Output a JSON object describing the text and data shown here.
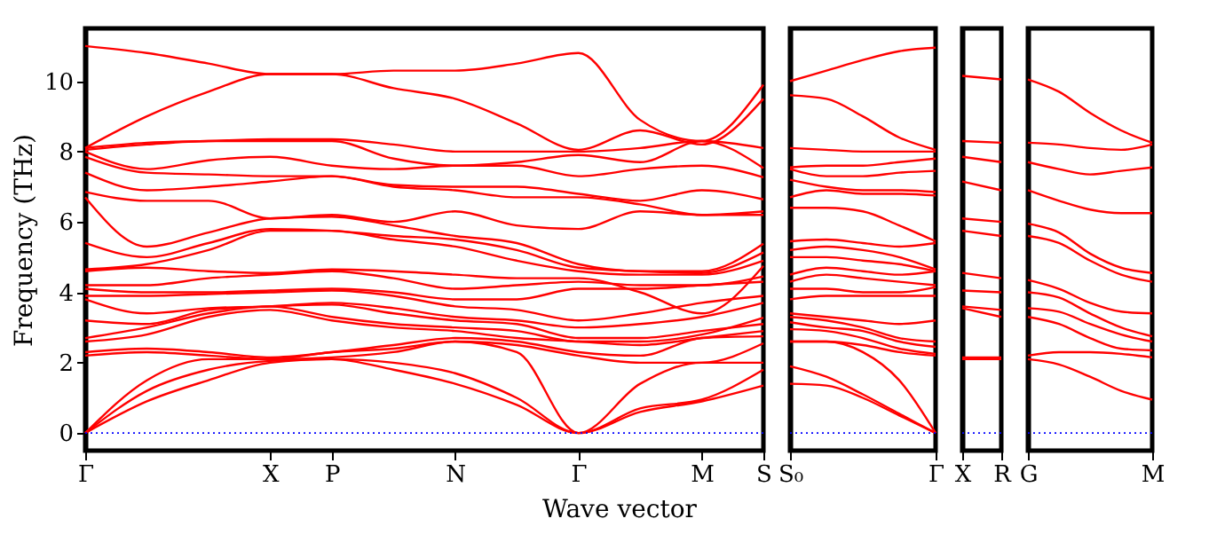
{
  "chart_data": [
    {
      "type": "line",
      "xlabel": "Wave vector",
      "ylabel": "Frequency (THz)",
      "categories": [
        "Γ",
        null,
        null,
        "X",
        "P",
        null,
        "N",
        null,
        "Γ",
        null,
        "M",
        "S"
      ],
      "ylim": [
        -0.5,
        11.5
      ],
      "yticks": [
        0,
        2,
        4,
        6,
        8,
        10
      ],
      "ref_lines": [
        {
          "axis": "y",
          "value": 0,
          "color": "#0000ff",
          "line_style": "dotted"
        }
      ],
      "series": [
        {
          "color": "#ff0000",
          "values": [
            0,
            0.9,
            1.5,
            2.0,
            2.1,
            1.8,
            1.4,
            0.8,
            0,
            0.6,
            0.9,
            1.35
          ]
        },
        {
          "color": "#ff0000",
          "values": [
            0,
            1.2,
            1.8,
            2.05,
            2.1,
            2.0,
            1.7,
            1.0,
            0,
            0.7,
            0.95,
            1.8
          ]
        },
        {
          "color": "#ff0000",
          "values": [
            0,
            1.5,
            2.1,
            2.1,
            2.15,
            2.3,
            2.6,
            2.3,
            0,
            1.4,
            2.0,
            2.0
          ]
        },
        {
          "color": "#ff0000",
          "values": [
            2.2,
            2.3,
            2.2,
            2.1,
            2.3,
            2.4,
            2.6,
            2.5,
            2.2,
            2.0,
            2.0,
            2.55
          ]
        },
        {
          "color": "#ff0000",
          "values": [
            2.3,
            2.4,
            2.3,
            2.15,
            2.3,
            2.5,
            2.7,
            2.6,
            2.3,
            2.2,
            2.7,
            2.75
          ]
        },
        {
          "color": "#ff0000",
          "values": [
            2.6,
            2.8,
            3.3,
            3.5,
            3.2,
            3.0,
            2.9,
            2.7,
            2.6,
            2.5,
            2.7,
            2.9
          ]
        },
        {
          "color": "#ff0000",
          "values": [
            2.7,
            3.0,
            3.4,
            3.6,
            3.3,
            3.1,
            3.0,
            2.9,
            2.6,
            2.6,
            2.8,
            3.28
          ]
        },
        {
          "color": "#ff0000",
          "values": [
            3.2,
            3.1,
            3.5,
            3.6,
            3.65,
            3.4,
            3.2,
            3.1,
            2.7,
            2.7,
            2.9,
            3.1
          ]
        },
        {
          "color": "#ff0000",
          "values": [
            3.8,
            3.4,
            3.55,
            3.6,
            3.7,
            3.55,
            3.3,
            3.2,
            3.0,
            3.1,
            3.3,
            3.7
          ]
        },
        {
          "color": "#ff0000",
          "values": [
            3.9,
            3.9,
            3.95,
            4.0,
            4.05,
            3.9,
            3.6,
            3.5,
            3.2,
            3.4,
            3.7,
            3.9
          ]
        },
        {
          "color": "#ff0000",
          "values": [
            4.1,
            4.0,
            4.0,
            4.05,
            4.1,
            4.0,
            3.8,
            3.8,
            4.1,
            4.1,
            4.2,
            4.3
          ]
        },
        {
          "color": "#ff0000",
          "values": [
            4.2,
            4.2,
            4.4,
            4.5,
            4.6,
            4.4,
            4.1,
            4.2,
            4.3,
            4.2,
            4.2,
            4.45
          ]
        },
        {
          "color": "#ff0000",
          "values": [
            4.6,
            4.7,
            4.6,
            4.55,
            4.65,
            4.6,
            4.5,
            4.4,
            4.4,
            4.0,
            3.4,
            4.75
          ]
        },
        {
          "color": "#ff0000",
          "values": [
            4.65,
            4.8,
            5.2,
            5.75,
            5.75,
            5.5,
            5.3,
            4.9,
            4.6,
            4.5,
            4.5,
            4.9
          ]
        },
        {
          "color": "#ff0000",
          "values": [
            5.4,
            5.0,
            5.4,
            5.8,
            5.75,
            5.6,
            5.5,
            5.2,
            4.7,
            4.6,
            4.55,
            5.13
          ]
        },
        {
          "color": "#ff0000",
          "values": [
            6.7,
            5.3,
            5.7,
            6.1,
            6.15,
            5.9,
            5.6,
            5.4,
            4.8,
            4.6,
            4.6,
            5.38
          ]
        },
        {
          "color": "#ff0000",
          "values": [
            6.85,
            6.6,
            6.6,
            6.1,
            6.2,
            6.0,
            6.3,
            5.9,
            5.8,
            6.3,
            6.2,
            6.2
          ]
        },
        {
          "color": "#ff0000",
          "values": [
            7.4,
            6.9,
            7.0,
            7.15,
            7.3,
            7.0,
            6.9,
            6.7,
            6.7,
            6.5,
            6.2,
            6.3
          ]
        },
        {
          "color": "#ff0000",
          "values": [
            7.85,
            7.4,
            7.35,
            7.3,
            7.3,
            7.05,
            7.0,
            7.0,
            6.8,
            6.6,
            6.9,
            6.64
          ]
        },
        {
          "color": "#ff0000",
          "values": [
            8.0,
            7.5,
            7.75,
            7.85,
            7.6,
            7.5,
            7.6,
            7.6,
            7.3,
            7.5,
            7.6,
            7.27
          ]
        },
        {
          "color": "#ff0000",
          "values": [
            8.05,
            8.2,
            8.3,
            8.3,
            8.3,
            7.8,
            7.6,
            7.7,
            7.9,
            7.7,
            8.3,
            7.53
          ]
        },
        {
          "color": "#ff0000",
          "values": [
            8.1,
            8.25,
            8.3,
            8.35,
            8.35,
            8.2,
            8.0,
            8.0,
            8.0,
            8.1,
            8.3,
            8.1
          ]
        },
        {
          "color": "#ff0000",
          "values": [
            8.1,
            9.0,
            9.7,
            10.2,
            10.2,
            9.8,
            9.5,
            8.8,
            8.05,
            8.6,
            8.2,
            9.5
          ]
        },
        {
          "color": "#ff0000",
          "values": [
            11.0,
            10.8,
            10.5,
            10.2,
            10.2,
            10.3,
            10.3,
            10.5,
            10.8,
            8.9,
            8.3,
            9.9
          ]
        }
      ]
    },
    {
      "type": "line",
      "categories": [
        "S₀",
        null,
        null,
        null,
        "Γ"
      ],
      "ylim": [
        -0.5,
        11.5
      ],
      "tick_labels": "x",
      "ref_lines": [
        {
          "axis": "y",
          "value": 0,
          "color": "#0000ff",
          "line_style": "dotted"
        }
      ],
      "series": [
        {
          "color": "#ff0000",
          "values": [
            1.4,
            1.35,
            1.0,
            0.5,
            0
          ]
        },
        {
          "color": "#ff0000",
          "values": [
            1.9,
            1.6,
            1.1,
            0.55,
            0
          ]
        },
        {
          "color": "#ff0000",
          "values": [
            2.6,
            2.6,
            2.3,
            1.5,
            0
          ]
        },
        {
          "color": "#ff0000",
          "values": [
            2.6,
            2.6,
            2.5,
            2.3,
            2.2
          ]
        },
        {
          "color": "#ff0000",
          "values": [
            2.95,
            2.9,
            2.7,
            2.4,
            2.25
          ]
        },
        {
          "color": "#ff0000",
          "values": [
            3.15,
            3.0,
            2.9,
            2.6,
            2.45
          ]
        },
        {
          "color": "#ff0000",
          "values": [
            3.3,
            3.2,
            3.0,
            2.7,
            2.6
          ]
        },
        {
          "color": "#ff0000",
          "values": [
            3.4,
            3.3,
            3.2,
            3.1,
            3.2
          ]
        },
        {
          "color": "#ff0000",
          "values": [
            3.8,
            3.9,
            3.9,
            3.9,
            3.9
          ]
        },
        {
          "color": "#ff0000",
          "values": [
            4.1,
            4.1,
            4.0,
            4.0,
            4.15
          ]
        },
        {
          "color": "#ff0000",
          "values": [
            4.3,
            4.5,
            4.4,
            4.3,
            4.2
          ]
        },
        {
          "color": "#ff0000",
          "values": [
            4.5,
            4.7,
            4.6,
            4.5,
            4.6
          ]
        },
        {
          "color": "#ff0000",
          "values": [
            5.0,
            5.0,
            4.9,
            4.8,
            4.6
          ]
        },
        {
          "color": "#ff0000",
          "values": [
            5.2,
            5.3,
            5.2,
            5.0,
            4.65
          ]
        },
        {
          "color": "#ff0000",
          "values": [
            5.45,
            5.5,
            5.4,
            5.3,
            5.4
          ]
        },
        {
          "color": "#ff0000",
          "values": [
            6.4,
            6.4,
            6.3,
            5.9,
            5.45
          ]
        },
        {
          "color": "#ff0000",
          "values": [
            6.7,
            6.9,
            6.8,
            6.8,
            6.75
          ]
        },
        {
          "color": "#ff0000",
          "values": [
            7.2,
            7.0,
            6.9,
            6.9,
            6.85
          ]
        },
        {
          "color": "#ff0000",
          "values": [
            7.5,
            7.3,
            7.3,
            7.4,
            7.45
          ]
        },
        {
          "color": "#ff0000",
          "values": [
            7.55,
            7.6,
            7.6,
            7.7,
            7.8
          ]
        },
        {
          "color": "#ff0000",
          "values": [
            8.1,
            8.05,
            8.0,
            8.0,
            8.0
          ]
        },
        {
          "color": "#ff0000",
          "values": [
            9.6,
            9.5,
            9.0,
            8.4,
            8.05
          ]
        },
        {
          "color": "#ff0000",
          "values": [
            10.0,
            10.3,
            10.6,
            10.85,
            10.95
          ]
        }
      ]
    },
    {
      "type": "line",
      "categories": [
        "X",
        "R"
      ],
      "ylim": [
        -0.5,
        11.5
      ],
      "tick_labels": "x",
      "ref_lines": [
        {
          "axis": "y",
          "value": 0,
          "color": "#0000ff",
          "line_style": "dotted"
        }
      ],
      "series": [
        {
          "color": "#ff0000",
          "values": [
            10.15,
            10.05
          ]
        },
        {
          "color": "#ff0000",
          "values": [
            8.3,
            8.25
          ]
        },
        {
          "color": "#ff0000",
          "values": [
            7.85,
            7.7
          ]
        },
        {
          "color": "#ff0000",
          "values": [
            7.15,
            6.9
          ]
        },
        {
          "color": "#ff0000",
          "values": [
            6.1,
            6.0
          ]
        },
        {
          "color": "#ff0000",
          "values": [
            5.75,
            5.6
          ]
        },
        {
          "color": "#ff0000",
          "values": [
            4.55,
            4.4
          ]
        },
        {
          "color": "#ff0000",
          "values": [
            4.05,
            4.0
          ]
        },
        {
          "color": "#ff0000",
          "values": [
            3.6,
            3.5
          ]
        },
        {
          "color": "#ff0000",
          "values": [
            3.55,
            3.3
          ]
        },
        {
          "color": "#ff0000",
          "values": [
            2.15,
            2.15
          ]
        },
        {
          "color": "#ff0000",
          "values": [
            2.1,
            2.1
          ]
        }
      ]
    },
    {
      "type": "line",
      "categories": [
        "G",
        null,
        null,
        null,
        "M"
      ],
      "ylim": [
        -0.5,
        11.5
      ],
      "tick_labels": "x",
      "ref_lines": [
        {
          "axis": "y",
          "value": 0,
          "color": "#0000ff",
          "line_style": "dotted"
        }
      ],
      "series": [
        {
          "color": "#ff0000",
          "values": [
            10.05,
            9.7,
            9.1,
            8.6,
            8.25
          ]
        },
        {
          "color": "#ff0000",
          "values": [
            8.25,
            8.2,
            8.1,
            8.05,
            8.2
          ]
        },
        {
          "color": "#ff0000",
          "values": [
            7.7,
            7.5,
            7.35,
            7.45,
            7.55
          ]
        },
        {
          "color": "#ff0000",
          "values": [
            6.9,
            6.6,
            6.35,
            6.25,
            6.25
          ]
        },
        {
          "color": "#ff0000",
          "values": [
            5.95,
            5.7,
            5.1,
            4.7,
            4.55
          ]
        },
        {
          "color": "#ff0000",
          "values": [
            5.6,
            5.4,
            4.9,
            4.5,
            4.3
          ]
        },
        {
          "color": "#ff0000",
          "values": [
            4.35,
            4.1,
            3.7,
            3.45,
            3.4
          ]
        },
        {
          "color": "#ff0000",
          "values": [
            4.0,
            3.85,
            3.4,
            3.0,
            2.75
          ]
        },
        {
          "color": "#ff0000",
          "values": [
            3.55,
            3.45,
            3.1,
            2.8,
            2.6
          ]
        },
        {
          "color": "#ff0000",
          "values": [
            3.3,
            3.1,
            2.7,
            2.4,
            2.35
          ]
        },
        {
          "color": "#ff0000",
          "values": [
            2.2,
            2.3,
            2.3,
            2.25,
            2.15
          ]
        },
        {
          "color": "#ff0000",
          "values": [
            2.1,
            1.95,
            1.6,
            1.2,
            0.95
          ]
        }
      ]
    }
  ]
}
